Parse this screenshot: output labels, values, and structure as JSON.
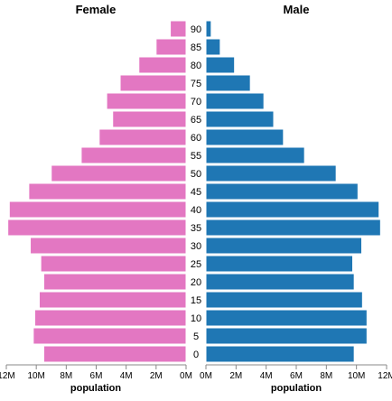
{
  "chart_data": {
    "type": "bar",
    "orientation": "horizontal",
    "layout": "population-pyramid",
    "categories": [
      "90",
      "85",
      "80",
      "75",
      "70",
      "65",
      "60",
      "55",
      "50",
      "45",
      "40",
      "35",
      "30",
      "25",
      "20",
      "15",
      "10",
      "5",
      "0"
    ],
    "series": [
      {
        "name": "Female",
        "color": "#e377c2",
        "values": [
          1050000,
          2000000,
          3150000,
          4400000,
          5300000,
          4900000,
          5800000,
          7000000,
          9000000,
          10500000,
          11800000,
          11900000,
          10400000,
          9700000,
          9500000,
          9800000,
          10100000,
          10200000,
          9500000
        ]
      },
      {
        "name": "Male",
        "color": "#1f77b4",
        "values": [
          350000,
          950000,
          1900000,
          2950000,
          3850000,
          4500000,
          5150000,
          6550000,
          8650000,
          10100000,
          11500000,
          11600000,
          10350000,
          9750000,
          9850000,
          10400000,
          10700000,
          10700000,
          9850000
        ]
      }
    ],
    "panel_titles": {
      "female": "Female",
      "male": "Male"
    },
    "xlabel": "population",
    "xlim": [
      0,
      12000000
    ],
    "xticks": [
      {
        "value": 0,
        "label": "0M"
      },
      {
        "value": 2000000,
        "label": "2M"
      },
      {
        "value": 4000000,
        "label": "4M"
      },
      {
        "value": 6000000,
        "label": "6M"
      },
      {
        "value": 8000000,
        "label": "8M"
      },
      {
        "value": 10000000,
        "label": "10M"
      },
      {
        "value": 12000000,
        "label": "12M"
      }
    ],
    "grid": false,
    "legend": "none"
  }
}
